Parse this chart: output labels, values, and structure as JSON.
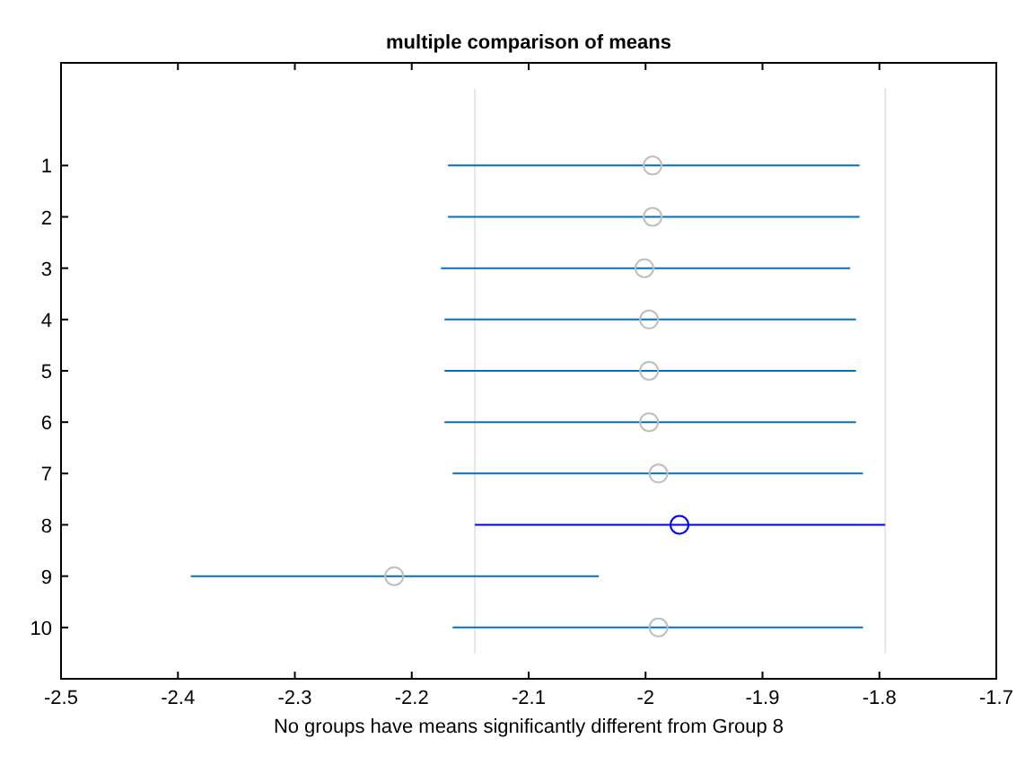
{
  "chart_data": {
    "type": "scatter",
    "orientation": "horizontal",
    "title": "multiple comparison of means",
    "xlabel": "No groups have means significantly different from Group 8",
    "categories": [
      "1",
      "2",
      "3",
      "4",
      "5",
      "6",
      "7",
      "8",
      "9",
      "10"
    ],
    "xlim": [
      -2.5,
      -1.7
    ],
    "xticks": [
      -2.5,
      -2.4,
      -2.3,
      -2.2,
      -2.1,
      -2,
      -1.9,
      -1.8,
      -1.7
    ],
    "marker": "circle",
    "grid": false,
    "series": [
      {
        "color": "#0072bd",
        "colors": [
          "#bfbfbf",
          "#bfbfbf",
          "#bfbfbf",
          "#bfbfbf",
          "#bfbfbf",
          "#bfbfbf",
          "#bfbfbf",
          null,
          "#bfbfbf",
          "#bfbfbf"
        ],
        "values": [
          -1.994,
          -1.994,
          -2.001,
          -1.997,
          -1.997,
          -1.997,
          -1.989,
          null,
          -2.215,
          -1.989
        ],
        "errors": [
          [
            -2.169,
            -1.817
          ],
          [
            -2.169,
            -1.817
          ],
          [
            -2.175,
            -1.825
          ],
          [
            -2.172,
            -1.82
          ],
          [
            -2.172,
            -1.82
          ],
          [
            -2.172,
            -1.82
          ],
          [
            -2.165,
            -1.814
          ],
          null,
          [
            -2.389,
            -2.04
          ],
          [
            -2.165,
            -1.814
          ]
        ]
      },
      {
        "color": "#0000ff",
        "colors": [
          null,
          null,
          null,
          null,
          null,
          null,
          null,
          "#0000ff",
          null,
          null
        ],
        "values": [
          null,
          null,
          null,
          null,
          null,
          null,
          null,
          -1.971,
          null,
          null
        ],
        "errors": [
          null,
          null,
          null,
          null,
          null,
          null,
          null,
          [
            -2.146,
            -1.795
          ],
          null,
          null
        ]
      }
    ],
    "ref_lines": [
      {
        "axis": "x",
        "value": -2.146,
        "color": "#e6e6e6"
      },
      {
        "axis": "x",
        "value": -1.795,
        "color": "#e6e6e6"
      }
    ]
  }
}
